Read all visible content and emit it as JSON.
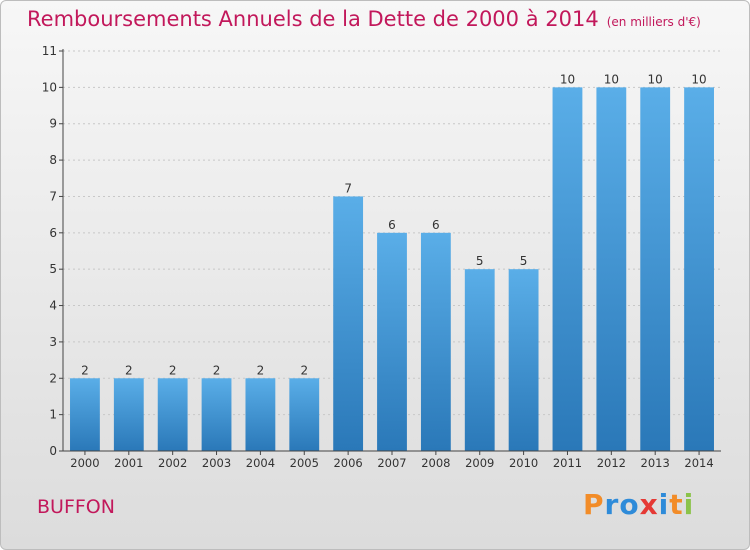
{
  "title": "Remboursements Annuels de la Dette de 2000 à 2014",
  "subtitle": "(en milliers d'€)",
  "footer_name": "BUFFON",
  "logo": {
    "letters": [
      {
        "char": "P",
        "color": "#f28c28"
      },
      {
        "char": "r",
        "color": "#2e8bd9"
      },
      {
        "char": "o",
        "color": "#2e8bd9"
      },
      {
        "char": "x",
        "color": "#e53935"
      },
      {
        "char": "i",
        "color": "#2e8bd9"
      },
      {
        "char": "t",
        "color": "#f28c28"
      },
      {
        "char": "i",
        "color": "#8bc34a"
      }
    ]
  },
  "colors": {
    "bar_light": "#5aaee8",
    "bar_dark": "#2a78b8",
    "title": "#c2185b",
    "grid": "#c8c8c8",
    "axis": "#444444"
  },
  "chart_data": {
    "type": "bar",
    "categories": [
      "2000",
      "2001",
      "2002",
      "2003",
      "2004",
      "2005",
      "2006",
      "2007",
      "2008",
      "2009",
      "2010",
      "2011",
      "2012",
      "2013",
      "2014"
    ],
    "values": [
      2,
      2,
      2,
      2,
      2,
      2,
      7,
      6,
      6,
      5,
      5,
      10,
      10,
      10,
      10
    ],
    "data_labels": [
      "2",
      "2",
      "2",
      "2",
      "2",
      "2",
      "7",
      "6",
      "6",
      "5",
      "5",
      "10",
      "10",
      "10",
      "10"
    ],
    "yticks": [
      "0",
      "1",
      "2",
      "3",
      "4",
      "5",
      "6",
      "7",
      "8",
      "9",
      "10",
      "11"
    ],
    "ylim": [
      0,
      11
    ],
    "grid": true
  }
}
